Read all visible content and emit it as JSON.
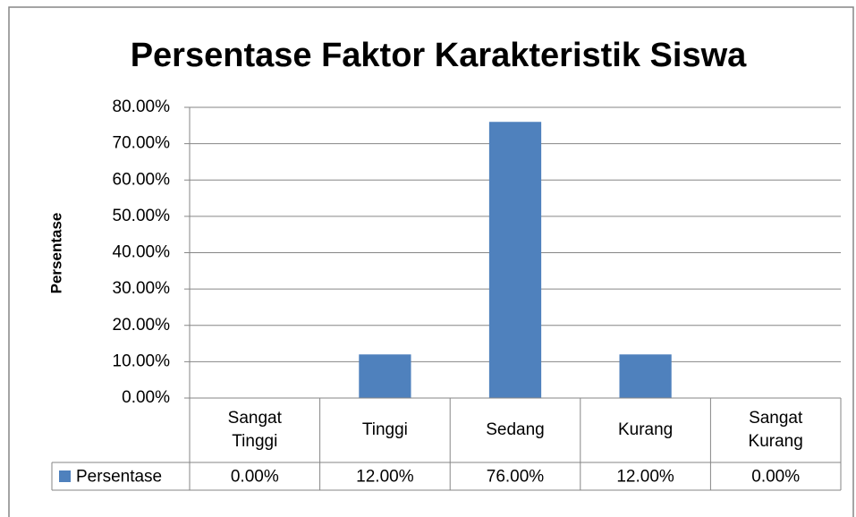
{
  "chart_data": {
    "type": "bar",
    "title": "Persentase Faktor Karakteristik Siswa",
    "y_label": "Persentase",
    "categories": [
      "Sangat Tinggi",
      "Tinggi",
      "Sedang",
      "Kurang",
      "Sangat Kurang"
    ],
    "series": [
      {
        "name": "Persentase",
        "color": "#4f81bd",
        "values": [
          0,
          12,
          76,
          12,
          0
        ],
        "value_labels": [
          "0.00%",
          "12.00%",
          "76.00%",
          "12.00%",
          "0.00%"
        ]
      }
    ],
    "ylim": [
      0,
      80
    ],
    "yticks": [
      {
        "value": 0,
        "label": "0.00%"
      },
      {
        "value": 10,
        "label": "10.00%"
      },
      {
        "value": 20,
        "label": "20.00%"
      },
      {
        "value": 30,
        "label": "30.00%"
      },
      {
        "value": 40,
        "label": "40.00%"
      },
      {
        "value": 50,
        "label": "50.00%"
      },
      {
        "value": 60,
        "label": "60.00%"
      },
      {
        "value": 70,
        "label": "70.00%"
      },
      {
        "value": 80,
        "label": "80.00%"
      }
    ],
    "grid": true,
    "data_table": true
  }
}
